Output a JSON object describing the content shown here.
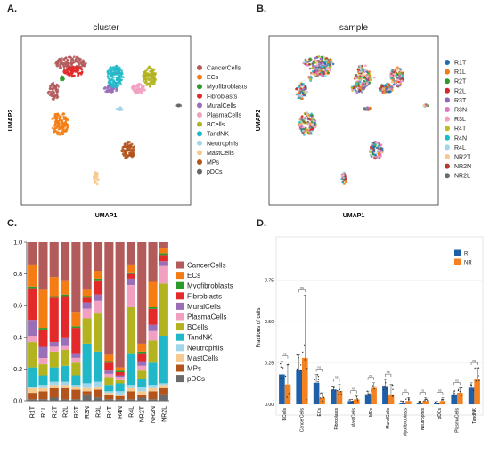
{
  "panels": {
    "a": {
      "letter": "A.",
      "title": "cluster",
      "xlabel": "UMAP1",
      "ylabel": "UMAP2",
      "legend": [
        {
          "name": "CancerCells",
          "color": "#b35a5a"
        },
        {
          "name": "ECs",
          "color": "#f57c12"
        },
        {
          "name": "Myofibroblasts",
          "color": "#2a9a2a"
        },
        {
          "name": "Fibroblasts",
          "color": "#e32929"
        },
        {
          "name": "MuralCells",
          "color": "#9a6fb8"
        },
        {
          "name": "PlasmaCells",
          "color": "#f2a0c2"
        },
        {
          "name": "BCells",
          "color": "#b2b31f"
        },
        {
          "name": "TandNK",
          "color": "#20b8c9"
        },
        {
          "name": "Neutrophils",
          "color": "#9fd6ea"
        },
        {
          "name": "MastCells",
          "color": "#f7c98e"
        },
        {
          "name": "MPs",
          "color": "#b3541c"
        },
        {
          "name": "pDCs",
          "color": "#666666"
        }
      ]
    },
    "b": {
      "letter": "B.",
      "title": "sample",
      "xlabel": "UMAP1",
      "ylabel": "UMAP2",
      "legend": [
        {
          "name": "R1T",
          "color": "#1f6fb4"
        },
        {
          "name": "R1L",
          "color": "#f57c12"
        },
        {
          "name": "R2T",
          "color": "#2a9a2a"
        },
        {
          "name": "R2L",
          "color": "#d62828"
        },
        {
          "name": "R3T",
          "color": "#9467bd"
        },
        {
          "name": "R3N",
          "color": "#e377c2"
        },
        {
          "name": "R3L",
          "color": "#f2a0c2"
        },
        {
          "name": "R4T",
          "color": "#bcbd22"
        },
        {
          "name": "R4N",
          "color": "#17becf"
        },
        {
          "name": "R4L",
          "color": "#9fd6ea"
        },
        {
          "name": "NR2T",
          "color": "#f7c98e"
        },
        {
          "name": "NR2N",
          "color": "#b33a2a"
        },
        {
          "name": "NR2L",
          "color": "#6b6b6b"
        }
      ]
    },
    "c": {
      "letter": "C."
    },
    "d": {
      "letter": "D."
    }
  },
  "chart_data": [
    {
      "type": "bar",
      "stacked": true,
      "panel": "C",
      "categories": [
        "R1T",
        "R1L",
        "R2T",
        "R2L",
        "R3T",
        "R3N",
        "R3L",
        "R4T",
        "R4N",
        "R4L",
        "NR2T",
        "NR2N",
        "NR2L"
      ],
      "ylim": [
        0,
        1.0
      ],
      "yticks": [
        "0.0",
        "0.2",
        "0.4",
        "0.6",
        "0.8",
        "1.0"
      ],
      "legend_position": "right",
      "series": [
        {
          "name": "pDCs",
          "color": "#6b6b6b",
          "values": [
            0.01,
            0.01,
            0.02,
            0.01,
            0.01,
            0.04,
            0.02,
            0.01,
            0.01,
            0.01,
            0.02,
            0.01,
            0.04
          ]
        },
        {
          "name": "MPs",
          "color": "#b3541c",
          "values": [
            0.04,
            0.05,
            0.06,
            0.07,
            0.06,
            0.02,
            0.05,
            0.03,
            0.02,
            0.05,
            0.02,
            0.05,
            0.04
          ]
        },
        {
          "name": "MastCells",
          "color": "#f7c98e",
          "values": [
            0.03,
            0.02,
            0.02,
            0.02,
            0.02,
            0.02,
            0.02,
            0.01,
            0.01,
            0.02,
            0.02,
            0.02,
            0.02
          ]
        },
        {
          "name": "Neutrophils",
          "color": "#9fd6ea",
          "values": [
            0.01,
            0.02,
            0.02,
            0.02,
            0.01,
            0.03,
            0.03,
            0.01,
            0.02,
            0.02,
            0.03,
            0.02,
            0.01
          ]
        },
        {
          "name": "TandNK",
          "color": "#20b8c9",
          "values": [
            0.12,
            0.06,
            0.09,
            0.1,
            0.06,
            0.25,
            0.19,
            0.04,
            0.05,
            0.2,
            0.05,
            0.14,
            0.3
          ]
        },
        {
          "name": "BCells",
          "color": "#b2b31f",
          "values": [
            0.16,
            0.07,
            0.1,
            0.1,
            0.08,
            0.16,
            0.24,
            0.05,
            0.02,
            0.29,
            0.05,
            0.14,
            0.33
          ]
        },
        {
          "name": "PlasmaCells",
          "color": "#f2a0c2",
          "values": [
            0.04,
            0.04,
            0.03,
            0.03,
            0.03,
            0.06,
            0.08,
            0.02,
            0.02,
            0.14,
            0.03,
            0.06,
            0.11
          ]
        },
        {
          "name": "MuralCells",
          "color": "#9a6fb8",
          "values": [
            0.1,
            0.07,
            0.03,
            0.05,
            0.03,
            0.04,
            0.04,
            0.02,
            0.01,
            0.04,
            0.03,
            0.04,
            0.03
          ]
        },
        {
          "name": "Fibroblasts",
          "color": "#e32929",
          "values": [
            0.2,
            0.11,
            0.28,
            0.26,
            0.16,
            0.03,
            0.09,
            0.05,
            0.02,
            0.03,
            0.05,
            0.1,
            0.04
          ]
        },
        {
          "name": "Myofibroblasts",
          "color": "#2a9a2a",
          "values": [
            0.01,
            0.01,
            0.01,
            0.01,
            0.01,
            0.01,
            0.01,
            0.01,
            0.01,
            0.01,
            0.01,
            0.01,
            0.01
          ]
        },
        {
          "name": "ECs",
          "color": "#f57c12",
          "values": [
            0.14,
            0.24,
            0.12,
            0.09,
            0.09,
            0.04,
            0.05,
            0.04,
            0.02,
            0.05,
            0.05,
            0.16,
            0.03
          ]
        },
        {
          "name": "CancerCells",
          "color": "#b35a5a",
          "values": [
            0.14,
            0.3,
            0.22,
            0.24,
            0.44,
            0.3,
            0.18,
            0.71,
            0.79,
            0.14,
            0.64,
            0.25,
            0.04
          ]
        }
      ]
    },
    {
      "type": "bar",
      "panel": "D",
      "categories": [
        "BCells",
        "CancerCells",
        "ECs",
        "Fibroblasts",
        "MastCells",
        "MPs",
        "MuralCells",
        "Myofibroblasts",
        "Neutrophils",
        "pDCs",
        "PlasmaCells",
        "TandNK"
      ],
      "ylabel": "Fractions of cells",
      "ylim": [
        0,
        1.0
      ],
      "yticks": [
        "0.00",
        "0.25",
        "0.50",
        "0.75"
      ],
      "legend_position": "top-right",
      "significance_label": "ns",
      "series": [
        {
          "name": "R",
          "color": "#1f5fa8",
          "values": [
            0.18,
            0.21,
            0.13,
            0.09,
            0.02,
            0.06,
            0.11,
            0.01,
            0.01,
            0.01,
            0.06,
            0.1
          ],
          "errors": [
            0.08,
            0.09,
            0.05,
            0.02,
            0.01,
            0.02,
            0.04,
            0.01,
            0.01,
            0.01,
            0.02,
            0.03
          ]
        },
        {
          "name": "NR",
          "color": "#f58220",
          "values": [
            0.12,
            0.28,
            0.04,
            0.08,
            0.03,
            0.1,
            0.06,
            0.02,
            0.02,
            0.02,
            0.07,
            0.15
          ],
          "errors": [
            0.12,
            0.38,
            0.03,
            0.04,
            0.02,
            0.03,
            0.06,
            0.02,
            0.02,
            0.02,
            0.03,
            0.07
          ]
        }
      ]
    }
  ]
}
